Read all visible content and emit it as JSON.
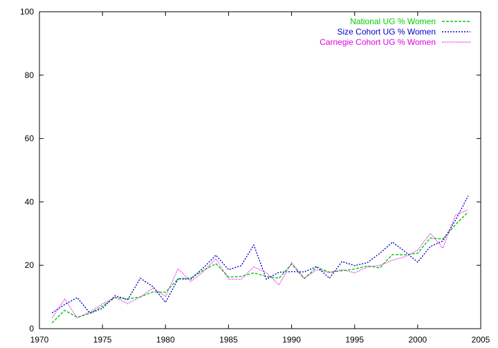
{
  "chart_data": {
    "type": "line",
    "title": "",
    "xlabel": "",
    "ylabel": "",
    "xlim": [
      1970,
      2005
    ],
    "ylim": [
      0,
      100
    ],
    "xticks": [
      1970,
      1975,
      1980,
      1985,
      1990,
      1995,
      2000,
      2005
    ],
    "yticks": [
      0,
      20,
      40,
      60,
      80,
      100
    ],
    "grid": false,
    "legend_position": "top-right",
    "x": [
      1971,
      1972,
      1973,
      1974,
      1975,
      1976,
      1977,
      1978,
      1979,
      1980,
      1981,
      1982,
      1983,
      1984,
      1985,
      1986,
      1987,
      1988,
      1989,
      1990,
      1991,
      1992,
      1993,
      1994,
      1995,
      1996,
      1997,
      1998,
      1999,
      2000,
      2001,
      2002,
      2003,
      2004
    ],
    "series": [
      {
        "name": "National UG % Women",
        "color": "#00cc00",
        "dash": "dashed",
        "values": [
          1.8,
          5.8,
          3.6,
          4.8,
          7.1,
          9.8,
          9.4,
          10.0,
          11.6,
          11.5,
          15.7,
          16.0,
          18.4,
          20.5,
          16.3,
          16.5,
          17.6,
          16.5,
          15.9,
          20.4,
          15.8,
          19.4,
          17.8,
          18.3,
          18.8,
          19.8,
          19.2,
          23.4,
          23.3,
          23.8,
          28.6,
          28.3,
          32.8,
          36.8
        ]
      },
      {
        "name": "Size Cohort UG % Women",
        "color": "#0000cc",
        "dash": "dotted",
        "values": [
          5.0,
          7.6,
          9.8,
          4.9,
          6.4,
          10.4,
          9.1,
          15.9,
          13.3,
          8.3,
          15.7,
          15.6,
          19.2,
          23.2,
          18.6,
          19.9,
          26.4,
          15.6,
          17.8,
          18.0,
          17.9,
          19.6,
          15.9,
          21.2,
          19.9,
          20.8,
          23.8,
          27.3,
          24.3,
          21.0,
          25.9,
          27.7,
          34.2,
          41.9
        ]
      },
      {
        "name": "Carnegie Cohort UG % Women",
        "color": "#e000e0",
        "dash": "fine-dotted",
        "values": [
          3.4,
          9.3,
          3.4,
          5.3,
          7.8,
          9.9,
          7.9,
          10.0,
          12.8,
          10.2,
          18.9,
          14.9,
          18.0,
          22.1,
          15.6,
          15.6,
          19.5,
          17.7,
          13.8,
          20.8,
          15.9,
          18.6,
          17.7,
          18.6,
          17.6,
          19.4,
          20.0,
          21.6,
          22.7,
          24.8,
          30.1,
          25.4,
          35.8,
          37.5
        ]
      }
    ]
  }
}
